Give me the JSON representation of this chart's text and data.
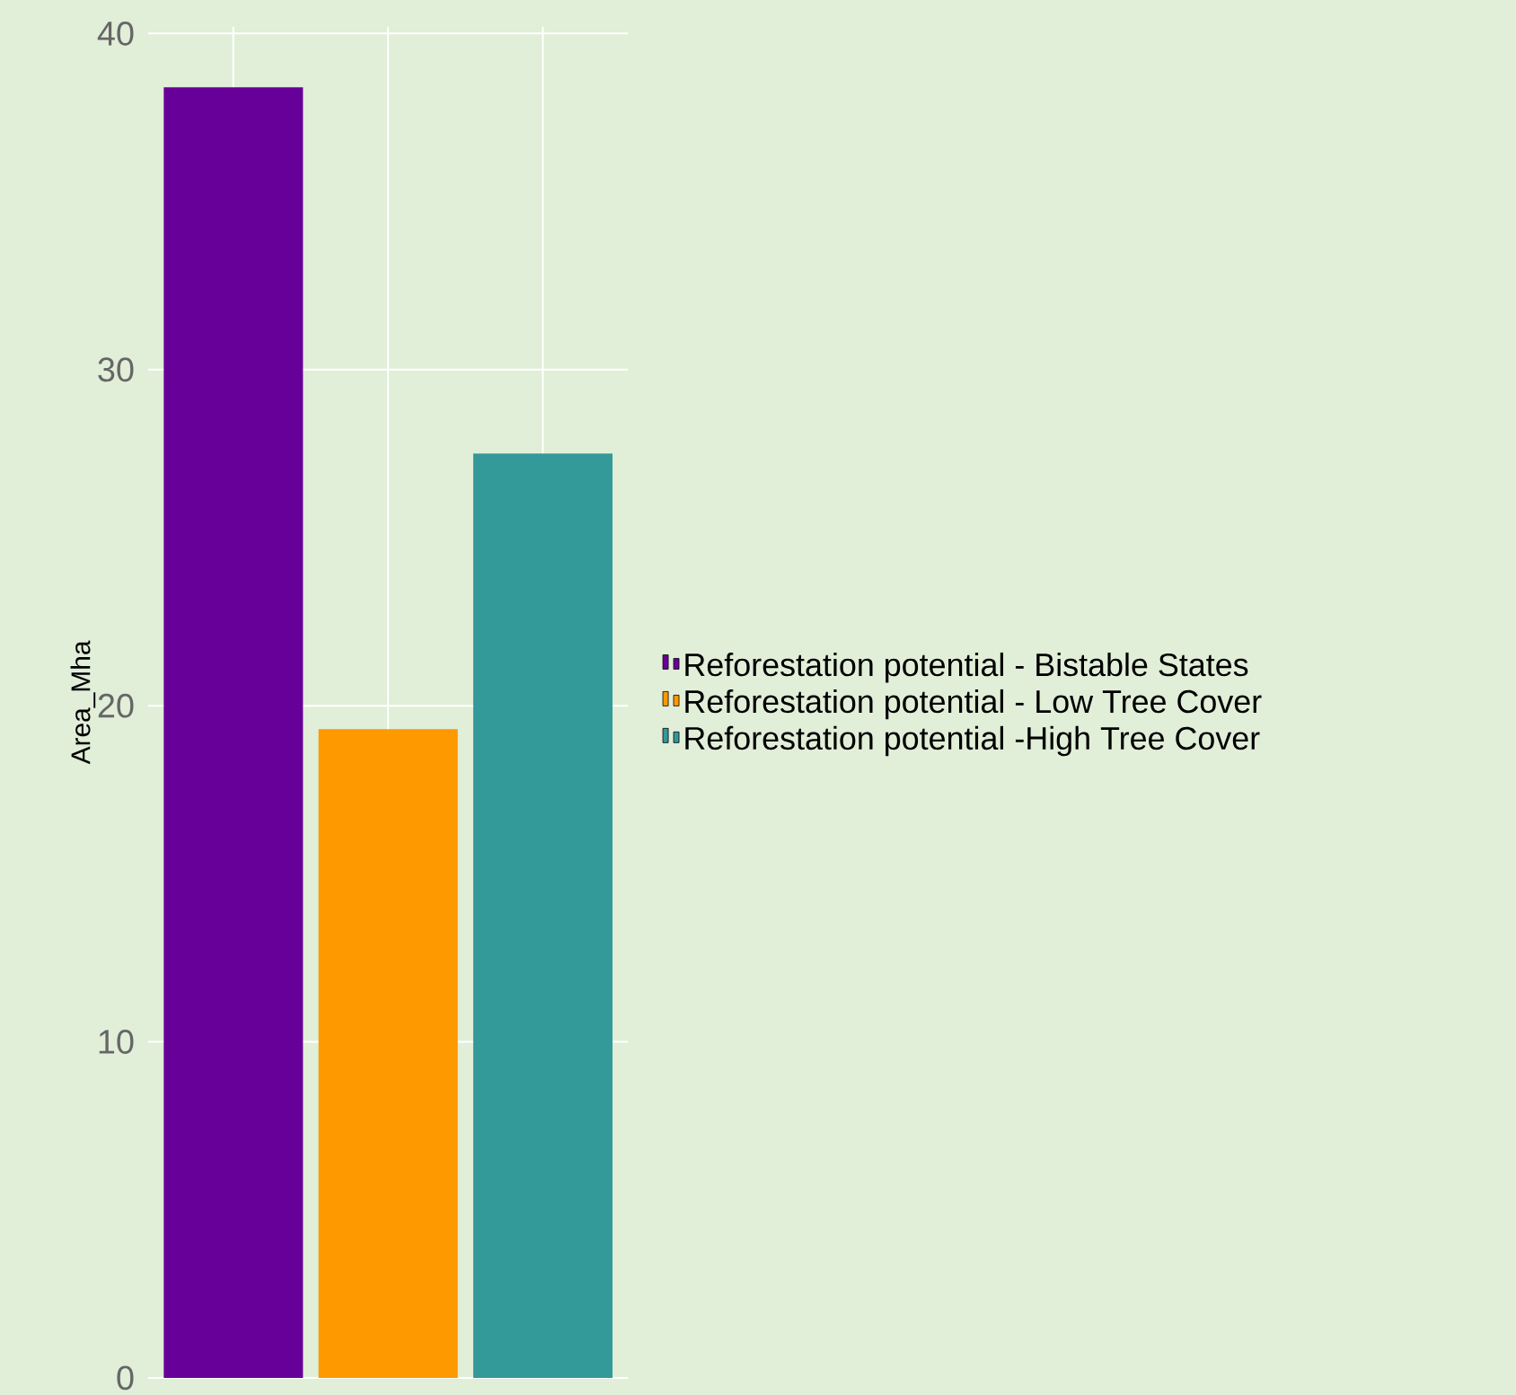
{
  "chart_data": {
    "type": "bar",
    "ylabel": "Area_Mha",
    "categories": [
      null,
      null,
      null
    ],
    "series": [
      {
        "name": "Reforestation potential - Bistable States",
        "color": "#660099",
        "values": [
          38.4,
          null,
          null
        ]
      },
      {
        "name": "Reforestation potential - Low Tree Cover",
        "color": "#ff9900",
        "values": [
          null,
          19.3,
          null
        ]
      },
      {
        "name": "Reforestation potential -High Tree Cover",
        "color": "#339999",
        "values": [
          null,
          null,
          27.5
        ]
      }
    ],
    "ylim": [
      0,
      40
    ],
    "yticks": [
      0,
      10,
      20,
      30,
      40
    ],
    "grid": true,
    "legend": "right"
  }
}
